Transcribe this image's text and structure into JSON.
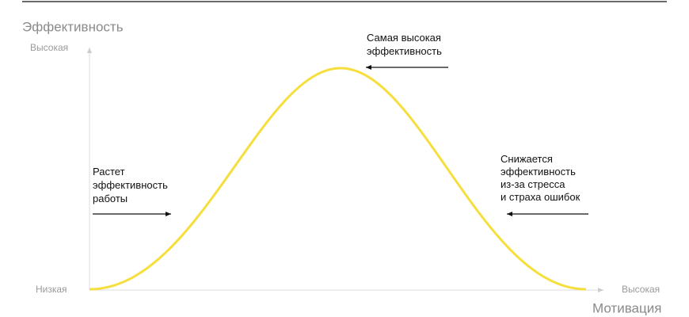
{
  "y_axis": {
    "title": "Эффективность",
    "high": "Высокая"
  },
  "origin_label": "Низкая",
  "x_axis": {
    "title": "Мотивация",
    "high": "Высокая"
  },
  "annotations": [
    {
      "lines": [
        "Растет",
        "эффективность",
        "работы"
      ]
    },
    {
      "lines": [
        "Самая высокая",
        "эффективность"
      ]
    },
    {
      "lines": [
        "Снижается",
        "эффективность",
        "из-за стресса",
        "и страха ошибок"
      ]
    }
  ]
}
